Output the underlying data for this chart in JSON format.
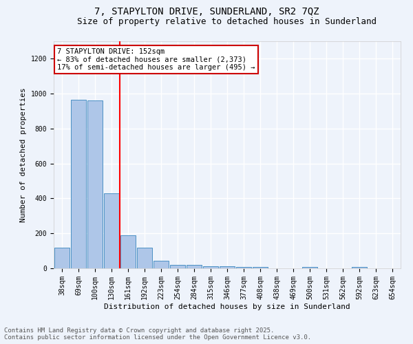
{
  "title_line1": "7, STAPYLTON DRIVE, SUNDERLAND, SR2 7QZ",
  "title_line2": "Size of property relative to detached houses in Sunderland",
  "xlabel": "Distribution of detached houses by size in Sunderland",
  "ylabel": "Number of detached properties",
  "categories": [
    "38sqm",
    "69sqm",
    "100sqm",
    "130sqm",
    "161sqm",
    "192sqm",
    "223sqm",
    "254sqm",
    "284sqm",
    "315sqm",
    "346sqm",
    "377sqm",
    "408sqm",
    "438sqm",
    "469sqm",
    "500sqm",
    "531sqm",
    "562sqm",
    "592sqm",
    "623sqm",
    "654sqm"
  ],
  "values": [
    120,
    965,
    960,
    430,
    190,
    120,
    43,
    18,
    18,
    12,
    10,
    8,
    8,
    0,
    0,
    8,
    0,
    0,
    8,
    0,
    0
  ],
  "bar_color": "#aec6e8",
  "bar_edge_color": "#4a90c4",
  "red_line_index": 4,
  "annotation_text_line1": "7 STAPYLTON DRIVE: 152sqm",
  "annotation_text_line2": "← 83% of detached houses are smaller (2,373)",
  "annotation_text_line3": "17% of semi-detached houses are larger (495) →",
  "annotation_box_color": "#ffffff",
  "annotation_box_edge": "#cc0000",
  "footer_line1": "Contains HM Land Registry data © Crown copyright and database right 2025.",
  "footer_line2": "Contains public sector information licensed under the Open Government Licence v3.0.",
  "ylim": [
    0,
    1300
  ],
  "background_color": "#eef3fb",
  "grid_color": "#ffffff",
  "title_fontsize": 10,
  "subtitle_fontsize": 9,
  "axis_label_fontsize": 8,
  "tick_fontsize": 7,
  "annotation_fontsize": 7.5,
  "footer_fontsize": 6.5
}
